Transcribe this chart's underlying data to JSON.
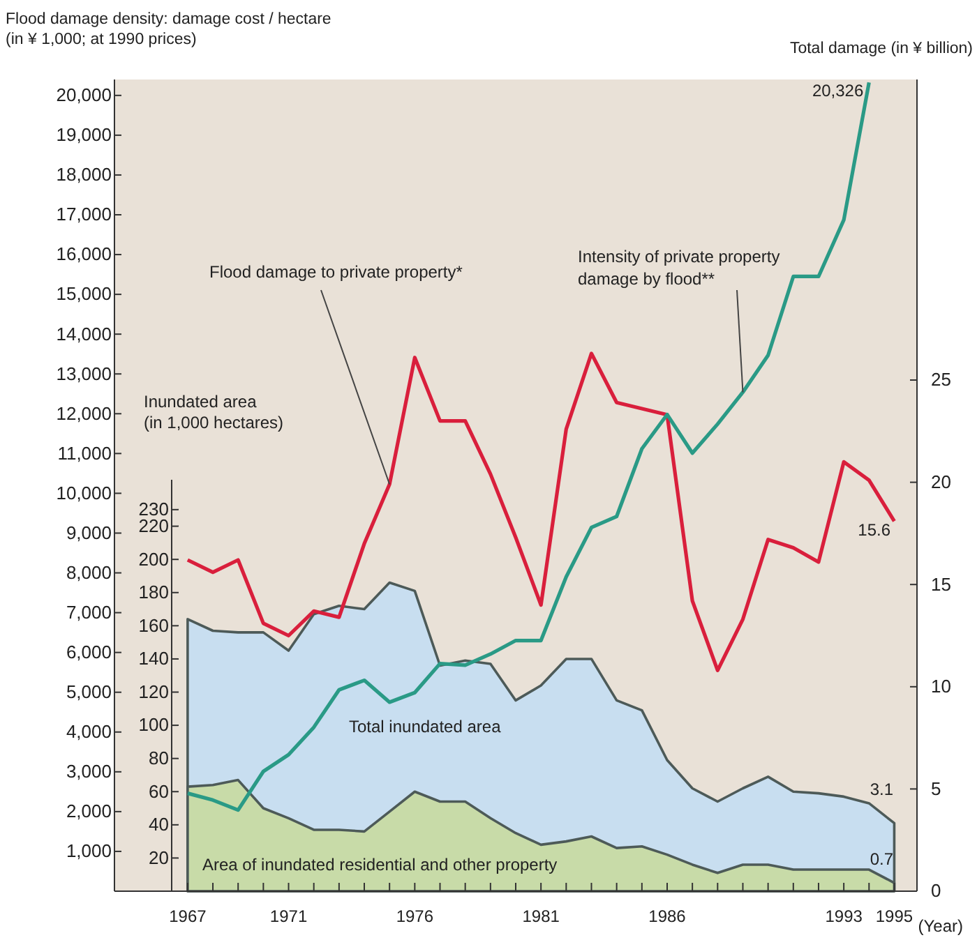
{
  "chart_data": {
    "type": "line",
    "ylabel": "Flood damage density: damage cost / hectare\n(in ¥ 1,000; at 1990 prices)",
    "y2label": "Total damage (in ¥ billion)",
    "y3label": "Inundated area\n(in 1,000 hectares)",
    "xlabel": "(Year)",
    "x": [
      1967,
      1968,
      1969,
      1970,
      1971,
      1972,
      1973,
      1974,
      1975,
      1976,
      1977,
      1978,
      1979,
      1980,
      1981,
      1982,
      1983,
      1984,
      1985,
      1986,
      1987,
      1988,
      1989,
      1990,
      1991,
      1992,
      1993,
      1994,
      1995
    ],
    "xlim": [
      1964.1,
      1995.9
    ],
    "xticks": [
      1967,
      {
        "value": 1968,
        "label": null
      },
      {
        "value": 1969,
        "label": null
      },
      {
        "value": 1970,
        "label": null
      },
      1971,
      {
        "value": 1972,
        "label": null
      },
      {
        "value": 1973,
        "label": null
      },
      {
        "value": 1974,
        "label": null
      },
      {
        "value": 1975,
        "label": null
      },
      1976,
      {
        "value": 1977,
        "label": null
      },
      {
        "value": 1978,
        "label": null
      },
      {
        "value": 1979,
        "label": null
      },
      {
        "value": 1980,
        "label": null
      },
      1981,
      {
        "value": 1982,
        "label": null
      },
      {
        "value": 1983,
        "label": null
      },
      {
        "value": 1984,
        "label": null
      },
      {
        "value": 1985,
        "label": null
      },
      1986,
      {
        "value": 1987,
        "label": null
      },
      {
        "value": 1988,
        "label": null
      },
      {
        "value": 1989,
        "label": null
      },
      {
        "value": 1990,
        "label": null
      },
      {
        "value": 1991,
        "label": null
      },
      {
        "value": 1992,
        "label": null
      },
      1993,
      {
        "value": 1994,
        "label": null
      },
      1995
    ],
    "ylim": [
      0,
      20400
    ],
    "yticks": [
      {
        "value": 1000,
        "label": "1,000"
      },
      {
        "value": 2000,
        "label": "2,000"
      },
      {
        "value": 3000,
        "label": "3,000"
      },
      {
        "value": 4000,
        "label": "4,000"
      },
      {
        "value": 5000,
        "label": "5,000"
      },
      {
        "value": 6000,
        "label": "6,000"
      },
      {
        "value": 7000,
        "label": "7,000"
      },
      {
        "value": 8000,
        "label": "8,000"
      },
      {
        "value": 9000,
        "label": "9,000"
      },
      {
        "value": 10000,
        "label": "10,000"
      },
      {
        "value": 11000,
        "label": "11,000"
      },
      {
        "value": 12000,
        "label": "12,000"
      },
      {
        "value": 13000,
        "label": "13,000"
      },
      {
        "value": 14000,
        "label": "14,000"
      },
      {
        "value": 15000,
        "label": "15,000"
      },
      {
        "value": 16000,
        "label": "16,000"
      },
      {
        "value": 17000,
        "label": "17,000"
      },
      {
        "value": 18000,
        "label": "18,000"
      },
      {
        "value": 19000,
        "label": "19,000"
      },
      {
        "value": 20000,
        "label": "20,000"
      }
    ],
    "y2lim": [
      0,
      39.7
    ],
    "y2ticks": [
      0,
      5,
      10,
      15,
      20,
      25
    ],
    "y3lim": [
      0,
      248
    ],
    "y3ticks": [
      20,
      40,
      60,
      80,
      100,
      120,
      140,
      160,
      180,
      200,
      220,
      230
    ],
    "grid": false,
    "legend": false,
    "marker": "none",
    "line_style": "solid",
    "series": [
      {
        "name": "Total inundated area",
        "type": "area",
        "axis": "y3",
        "color": "#c8def0",
        "values": [
          164,
          157,
          156,
          156,
          145,
          167,
          172,
          170,
          186,
          181,
          136,
          139,
          137,
          115,
          124,
          140,
          140,
          115,
          109,
          79,
          62,
          54,
          62,
          69,
          60,
          59,
          57,
          53,
          41
        ]
      },
      {
        "name": "Area of inundated residential and other property",
        "type": "area",
        "axis": "y3",
        "color": "#c8dba8",
        "values": [
          63,
          64,
          67,
          50,
          44,
          37,
          37,
          36,
          48,
          60,
          54,
          54,
          44,
          35,
          28,
          30,
          33,
          26,
          27,
          22,
          16,
          11,
          16,
          16,
          13,
          13,
          13,
          13,
          5
        ]
      },
      {
        "name": "Flood damage to private property*",
        "axis": "y2",
        "color": "#d91f3c",
        "values": [
          16.2,
          15.6,
          16.2,
          13.1,
          12.5,
          13.7,
          13.4,
          17.0,
          19.9,
          26.1,
          23.0,
          23.0,
          20.4,
          17.3,
          14.0,
          22.6,
          26.3,
          23.9,
          23.6,
          23.3,
          14.2,
          10.8,
          13.3,
          17.2,
          16.8,
          16.1,
          21.0,
          20.1,
          18.1
        ]
      },
      {
        "name": "Intensity of private property damage by flood**",
        "color": "#2a9a86",
        "values": [
          2460,
          2290,
          2040,
          3010,
          3430,
          4120,
          5060,
          5300,
          4750,
          4990,
          5720,
          5680,
          5960,
          6300,
          6300,
          7900,
          9140,
          9420,
          11120,
          11980,
          11010,
          11740,
          12540,
          13470,
          15450,
          15450,
          16870,
          20326,
          null
        ],
        "value_labels": [
          null,
          null,
          null,
          null,
          null,
          null,
          null,
          null,
          null,
          null,
          null,
          null,
          null,
          null,
          null,
          null,
          null,
          null,
          null,
          null,
          null,
          null,
          null,
          null,
          null,
          null,
          null,
          "20,326",
          null
        ]
      }
    ],
    "annotations": [
      "15.6",
      "3.1",
      "0.7"
    ]
  }
}
